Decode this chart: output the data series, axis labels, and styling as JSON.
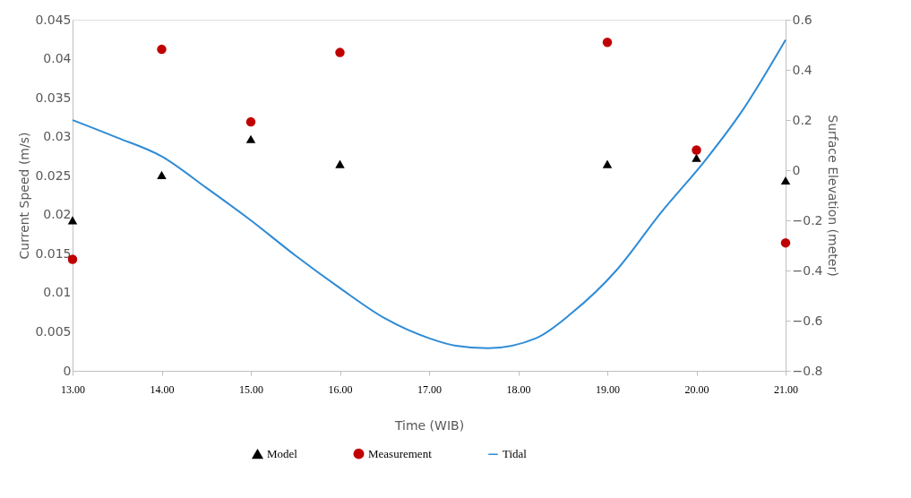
{
  "chart_data": {
    "type": "scatter",
    "xlabel": "Time (WIB)",
    "ylabel": "Current Speed (m/s)",
    "y2label": "Surface Elevation (meter)",
    "x": [
      13,
      14,
      15,
      16,
      19,
      20,
      21
    ],
    "xlim": [
      13,
      21
    ],
    "xticks": [
      {
        "value": 13,
        "label": "13.00"
      },
      {
        "value": 14,
        "label": "14.00"
      },
      {
        "value": 15,
        "label": "15.00"
      },
      {
        "value": 16,
        "label": "16.00"
      },
      {
        "value": 17,
        "label": "17.00"
      },
      {
        "value": 18,
        "label": "18.00"
      },
      {
        "value": 19,
        "label": "19.00"
      },
      {
        "value": 20,
        "label": "20.00"
      },
      {
        "value": 21,
        "label": "21.00"
      }
    ],
    "ylim": [
      0,
      0.045
    ],
    "yticks": [
      0,
      0.005,
      0.01,
      0.015,
      0.02,
      0.025,
      0.03,
      0.035,
      0.04,
      0.045
    ],
    "y2lim": [
      -0.8,
      0.6
    ],
    "y2ticks": [
      -0.8,
      -0.6,
      -0.4,
      -0.2,
      0,
      0.2,
      0.4,
      0.6
    ],
    "series": [
      {
        "name": "Model",
        "marker": "triangle",
        "color": "#000000",
        "values": [
          0.0193,
          0.0251,
          0.0297,
          0.0265,
          0.0265,
          0.0273,
          0.0244
        ]
      },
      {
        "name": "Measurement",
        "marker": "circle",
        "color": "#c00000",
        "values": [
          0.0143,
          0.0412,
          0.0319,
          0.0408,
          0.0421,
          0.0283,
          0.0164
        ]
      },
      {
        "name": "Tidal",
        "type": "line",
        "axis": "y2",
        "marker": "none",
        "color": "#2e8bd6",
        "x": [
          13,
          13.5,
          14,
          14.5,
          15,
          15.5,
          16,
          16.5,
          17,
          17.3,
          17.66,
          18.2,
          18.6,
          19.1,
          19.6,
          20.1,
          20.5,
          21
        ],
        "values": [
          0.2,
          0.13,
          0.055,
          -0.07,
          -0.2,
          -0.34,
          -0.47,
          -0.59,
          -0.67,
          -0.7,
          -0.71,
          -0.67,
          -0.57,
          -0.4,
          -0.17,
          0.04,
          0.23,
          0.52
        ]
      }
    ],
    "legend": "bottom",
    "grid": false
  }
}
